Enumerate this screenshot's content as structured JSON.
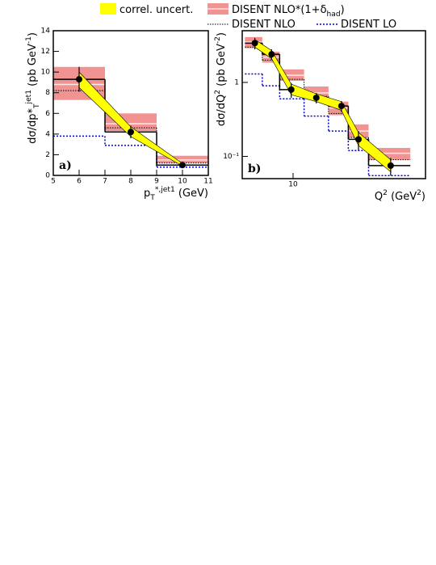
{
  "legend": [
    {
      "name": [
        [
          "correl. uncert.",
          ""
        ]
      ],
      "color": "#ffff00"
    },
    {
      "name": [
        [
          "DISENT NLO*(1+δ",
          ""
        ],
        [
          "had",
          "sub"
        ],
        [
          ")",
          ""
        ]
      ],
      "color": "#f08080"
    },
    {
      "name": [
        [
          "DISENT NLO",
          ""
        ]
      ],
      "color": "#000000"
    },
    {
      "name": [
        [
          "DISENT LO",
          ""
        ]
      ],
      "color": "#0000cc"
    }
  ],
  "chart_data": [
    {
      "type": "binned",
      "panel_label": "a)",
      "xlabel": [
        [
          "p",
          ""
        ],
        [
          "T",
          "sub"
        ],
        [
          "*,jet1",
          "super"
        ],
        [
          " (GeV)",
          ""
        ]
      ],
      "ylabel": [
        [
          "dσ/dp*",
          ""
        ],
        [
          "T",
          "sub"
        ],
        [
          "jet1",
          "super"
        ],
        [
          " (pb GeV",
          ""
        ],
        [
          "-1",
          "super"
        ],
        [
          ")",
          ""
        ]
      ],
      "xlim": [
        5,
        11
      ],
      "xticks": [
        5,
        6,
        7,
        8,
        9,
        10,
        11
      ],
      "ylim": [
        0,
        14
      ],
      "yticks": [
        0,
        2,
        4,
        6,
        8,
        10,
        12,
        14
      ],
      "xlog": false,
      "ylog": false,
      "bins": [
        5,
        7,
        9,
        11
      ],
      "points": {
        "x": [
          6,
          8,
          10
        ],
        "values": [
          9.3,
          4.2,
          1.0
        ],
        "errors": [
          1.2,
          0.6,
          0.15
        ],
        "correl_low": [
          8.5,
          3.75,
          0.9
        ],
        "correl_high": [
          10.0,
          4.7,
          1.15
        ]
      },
      "nlo_had": {
        "values": [
          8.8,
          5.0,
          1.5
        ],
        "low": [
          7.3,
          4.3,
          1.2
        ],
        "high": [
          10.5,
          6.0,
          1.9
        ]
      },
      "nlo": {
        "values": [
          8.2,
          4.6,
          1.2
        ]
      },
      "lo": {
        "values": [
          3.8,
          2.9,
          0.8
        ]
      }
    },
    {
      "type": "binned",
      "panel_label": "b)",
      "xlabel": [
        [
          "Q",
          ""
        ],
        [
          "2",
          "super"
        ],
        [
          " (GeV",
          ""
        ],
        [
          "2",
          "super"
        ],
        [
          ")",
          ""
        ]
      ],
      "ylabel": [
        [
          "dσ/dQ",
          ""
        ],
        [
          "2",
          "super"
        ],
        [
          " (pb GeV",
          ""
        ],
        [
          "-2",
          "super"
        ],
        [
          ")",
          ""
        ]
      ],
      "xlim": [
        4.3,
        90
      ],
      "xticks": [
        10
      ],
      "ylim": [
        0.05,
        5
      ],
      "yticks": [
        {
          "value": 0.1,
          "label": "10⁻¹"
        },
        1
      ],
      "xlog": true,
      "ylog": true,
      "bins": [
        4.5,
        6,
        8,
        12,
        18,
        25,
        35,
        70
      ],
      "points": {
        "x": [
          5.3,
          7,
          9.7,
          14.7,
          22.3,
          29.6,
          50.5
        ],
        "values": [
          3.4,
          2.4,
          0.8,
          0.62,
          0.48,
          0.17,
          0.075
        ],
        "errors": [
          0.6,
          0.4,
          0.18,
          0.1,
          0.08,
          0.05,
          0.02
        ],
        "correl_low": [
          3.0,
          2.1,
          0.68,
          0.55,
          0.42,
          0.14,
          0.062
        ],
        "correl_high": [
          3.8,
          2.7,
          0.95,
          0.7,
          0.55,
          0.21,
          0.09
        ]
      },
      "nlo_had": {
        "values": [
          3.5,
          2.2,
          1.25,
          0.72,
          0.45,
          0.22,
          0.11
        ],
        "low": [
          2.9,
          1.85,
          1.05,
          0.6,
          0.36,
          0.18,
          0.09
        ],
        "high": [
          4.1,
          2.6,
          1.5,
          0.88,
          0.55,
          0.27,
          0.13
        ]
      },
      "nlo": {
        "values": [
          3.0,
          2.0,
          1.1,
          0.65,
          0.38,
          0.18,
          0.09
        ]
      },
      "lo": {
        "values": [
          1.3,
          0.9,
          0.6,
          0.35,
          0.22,
          0.12,
          0.055
        ]
      }
    }
  ]
}
